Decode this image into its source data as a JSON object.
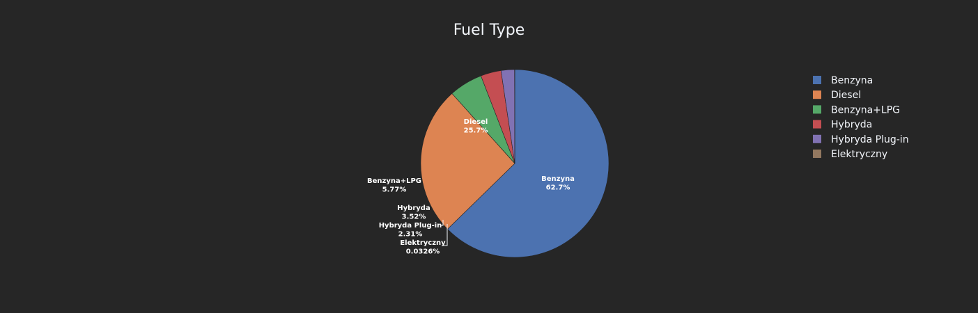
{
  "chart_data": {
    "type": "pie",
    "title": "Fuel Type",
    "categories": [
      "Benzyna",
      "Diesel",
      "Benzyna+LPG",
      "Hybryda",
      "Hybryda Plug-in",
      "Elektryczny"
    ],
    "values": [
      62.7,
      25.7,
      5.77,
      3.52,
      2.31,
      0.0326
    ],
    "percent_labels": [
      "62.7%",
      "25.7%",
      "5.77%",
      "3.52%",
      "2.31%",
      "0.0326%"
    ],
    "colors": [
      "#4c72b0",
      "#dd8452",
      "#55a868",
      "#c44e52",
      "#8172b3",
      "#937860"
    ],
    "direction": "clockwise",
    "start": "top",
    "legend_position": "right",
    "background": "#262626"
  }
}
